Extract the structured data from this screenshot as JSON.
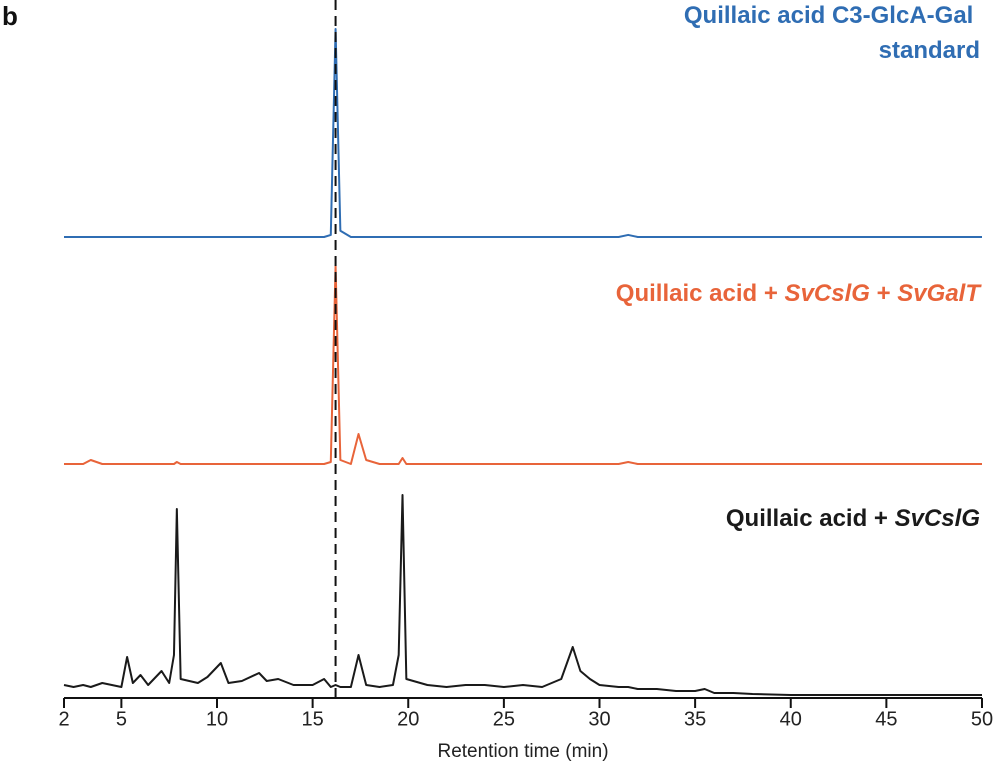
{
  "chart_data": {
    "type": "line",
    "panel_label": "b",
    "x_label": "Retention time (min)",
    "x": [
      2,
      2.5,
      3,
      3.4,
      4,
      4.5,
      5,
      5.3,
      5.6,
      6,
      6.4,
      7.1,
      7.5,
      7.75,
      7.9,
      8.1,
      9,
      9.5,
      10.2,
      10.6,
      11.3,
      12.2,
      12.6,
      13.2,
      14,
      15,
      15.6,
      15.95,
      16.2,
      16.45,
      17,
      17.4,
      17.8,
      18.5,
      19.2,
      19.5,
      19.7,
      19.9,
      21,
      22,
      23,
      24,
      25,
      26,
      27,
      28,
      28.6,
      29,
      29.5,
      30,
      31,
      31.5,
      32,
      33,
      34,
      35,
      35.5,
      36,
      37,
      38,
      40,
      44,
      48,
      50
    ],
    "series": [
      {
        "name": "Quillaic acid C3-GlcA-Gal standard",
        "color": "#2f6db3",
        "values": [
          0,
          0,
          0,
          0,
          0,
          0,
          0,
          0,
          0,
          0,
          0,
          0,
          0,
          0,
          0,
          0,
          0,
          0,
          0,
          0,
          0,
          0,
          0,
          0,
          0,
          0,
          0,
          0.01,
          1,
          0.03,
          0,
          0,
          0,
          0,
          0,
          0,
          0,
          0,
          0,
          0,
          0,
          0,
          0,
          0,
          0,
          0,
          0,
          0,
          0,
          0,
          0,
          0.01,
          0,
          0,
          0,
          0,
          0,
          0,
          0,
          0,
          0,
          0,
          0,
          0
        ]
      },
      {
        "name": "Quillaic acid + SvCslG + SvGalT",
        "color": "#e8643a",
        "values": [
          0.01,
          0.01,
          0.01,
          0.03,
          0.01,
          0.01,
          0.01,
          0.01,
          0.01,
          0.01,
          0.01,
          0.01,
          0.01,
          0.01,
          0.02,
          0.01,
          0.01,
          0.01,
          0.01,
          0.01,
          0.01,
          0.01,
          0.01,
          0.01,
          0.01,
          0.01,
          0.01,
          0.02,
          1,
          0.03,
          0.01,
          0.16,
          0.03,
          0.01,
          0.01,
          0.01,
          0.04,
          0.01,
          0.01,
          0.01,
          0.01,
          0.01,
          0.01,
          0.01,
          0.01,
          0.01,
          0.01,
          0.01,
          0.01,
          0.01,
          0.01,
          0.02,
          0.01,
          0.01,
          0.01,
          0.01,
          0.01,
          0.01,
          0.01,
          0.01,
          0.01,
          0.01,
          0.01,
          0.01
        ]
      },
      {
        "name": "Quillaic acid + SvCslG",
        "color": "#1a1a1a",
        "values": [
          0.05,
          0.04,
          0.05,
          0.04,
          0.06,
          0.05,
          0.04,
          0.19,
          0.06,
          0.1,
          0.05,
          0.12,
          0.06,
          0.2,
          0.93,
          0.08,
          0.06,
          0.09,
          0.16,
          0.06,
          0.07,
          0.11,
          0.07,
          0.08,
          0.05,
          0.05,
          0.08,
          0.04,
          0.05,
          0.04,
          0.04,
          0.2,
          0.05,
          0.04,
          0.05,
          0.2,
          1,
          0.08,
          0.05,
          0.04,
          0.05,
          0.05,
          0.04,
          0.05,
          0.04,
          0.08,
          0.24,
          0.12,
          0.08,
          0.05,
          0.04,
          0.04,
          0.03,
          0.03,
          0.02,
          0.02,
          0.03,
          0.01,
          0.01,
          0.005,
          0,
          0,
          0,
          0
        ]
      }
    ],
    "reference_x": 16.2,
    "xlim": [
      2,
      50
    ],
    "xticks": [
      2,
      5,
      10,
      15,
      20,
      25,
      30,
      35,
      40,
      45,
      50
    ],
    "ylim": [
      0,
      1
    ]
  }
}
